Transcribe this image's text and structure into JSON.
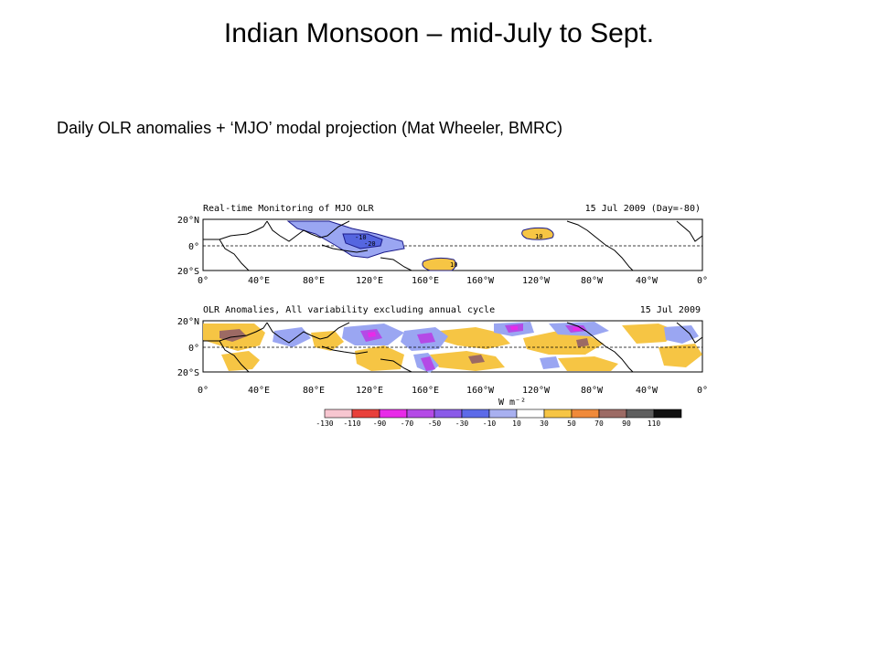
{
  "slide": {
    "title": "Indian Monsoon – mid-July to Sept.",
    "subtitle": "Daily OLR anomalies + ‘MJO’ modal projection (Mat Wheeler, BMRC)"
  },
  "figure": {
    "top_panel": {
      "title": "Real-time Monitoring of MJO OLR",
      "date": "15 Jul 2009 (Day=-80)",
      "contour_labels": [
        "-10",
        "-20",
        "10",
        "10"
      ]
    },
    "bottom_panel": {
      "title": "OLR Anomalies, All variability excluding annual cycle",
      "date": "15 Jul 2009"
    },
    "lat_ticks": [
      "20°N",
      "0°",
      "20°S"
    ],
    "lon_ticks": [
      "0°",
      "40°E",
      "80°E",
      "120°E",
      "160°E",
      "160°W",
      "120°W",
      "80°W",
      "40°W",
      "0°"
    ],
    "colorbar": {
      "unit": "W m⁻²",
      "ticks": [
        "-130",
        "-110",
        "-90",
        "-70",
        "-50",
        "-30",
        "-10",
        "10",
        "30",
        "50",
        "70",
        "90",
        "110"
      ],
      "colors": [
        "#f7c6d0",
        "#e8403b",
        "#e82ae8",
        "#b44ae6",
        "#8a5ae8",
        "#5c6ae8",
        "#a8b0f0",
        "#ffffff",
        "#f6c544",
        "#f08a3a",
        "#9c6a64",
        "#5e5e5e",
        "#111111"
      ]
    },
    "colors": {
      "negative_fill": "#9aa6f2",
      "strong_negative_fill": "#5566e0",
      "positive_fill": "#f6c544",
      "contour": "#1a1a8a"
    }
  }
}
